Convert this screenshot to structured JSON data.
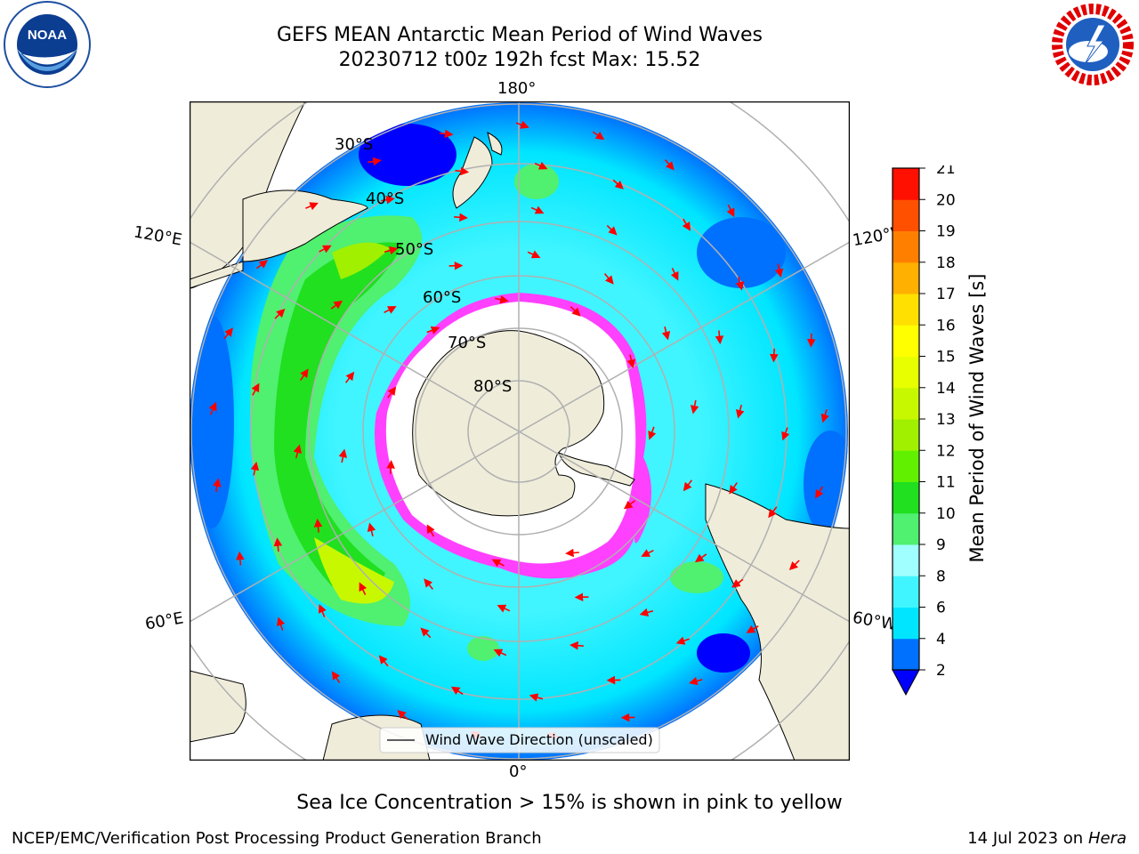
{
  "header": {
    "title_line1": "GEFS MEAN Antarctic Mean Period of Wind Waves",
    "title_line2": "20230712 t00z 192h fcst   Max: 15.52"
  },
  "logos": {
    "left": {
      "name": "noaa-logo",
      "text": "NOAA"
    },
    "right": {
      "name": "nws-logo",
      "text": "NATIONAL WEATHER SERVICE"
    }
  },
  "map": {
    "projection": "south-polar-stereographic",
    "lon_labels": {
      "top": "180°",
      "bottom": "0°",
      "left_upper": "120°E",
      "left_lower": "60°E",
      "right_upper": "120°W",
      "right_lower": "60°W"
    },
    "lat_labels": [
      "30°S",
      "40°S",
      "50°S",
      "60°S",
      "70°S",
      "80°S"
    ],
    "legend_label": "Wind Wave Direction (unscaled)"
  },
  "colorbar": {
    "title": "Mean Period of Wind Waves [s]",
    "ticks": [
      "2",
      "4",
      "6",
      "8",
      "9",
      "10",
      "11",
      "12",
      "13",
      "14",
      "15",
      "16",
      "17",
      "18",
      "19",
      "20",
      "21"
    ],
    "colors": [
      "#0070ff",
      "#00e5ff",
      "#40f5ff",
      "#a0ffff",
      "#50f070",
      "#20e020",
      "#60f000",
      "#a0f000",
      "#c8f800",
      "#e8ff00",
      "#ffff00",
      "#ffe000",
      "#ffb000",
      "#ff8000",
      "#ff5000",
      "#ff1000"
    ],
    "under_color": "#0000ff"
  },
  "colors": {
    "land": "#efedda",
    "sea_ice": "#ff40ff",
    "arrow": "#ff0000",
    "grid": "#b0b0b0"
  },
  "footer": {
    "note": "Sea Ice Concentration > 15% is shown in pink to yellow",
    "credit": "NCEP/EMC/Verification Post Processing Product Generation Branch",
    "date": "14 Jul 2023 on",
    "machine": "Hera"
  }
}
